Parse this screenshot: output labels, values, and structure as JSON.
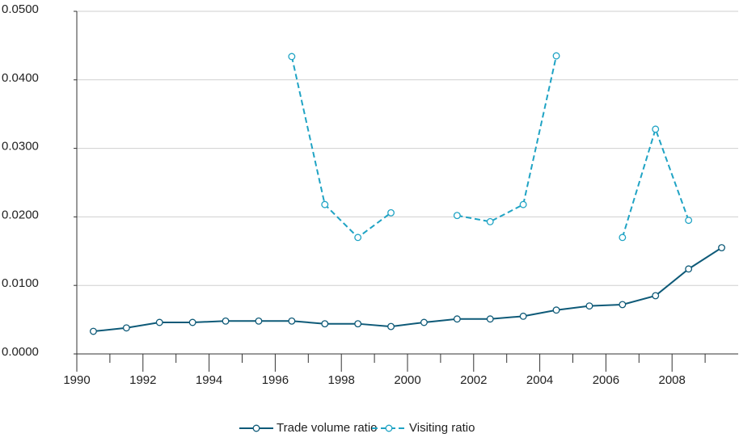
{
  "chart_data": {
    "type": "line",
    "x": [
      1990.5,
      1991.5,
      1992.5,
      1993.5,
      1994.5,
      1995.5,
      1996.5,
      1997.5,
      1998.5,
      1999.5,
      2000.5,
      2001.5,
      2002.5,
      2003.5,
      2004.5,
      2005.5,
      2006.5,
      2007.5,
      2008.5,
      2009.5
    ],
    "series": [
      {
        "name": "Trade volume ratio",
        "color": "#0e5a78",
        "dashed": false,
        "values": [
          0.0033,
          0.0038,
          0.0046,
          0.0046,
          0.0048,
          0.0048,
          0.0048,
          0.0044,
          0.0044,
          0.004,
          0.0046,
          0.0051,
          0.0051,
          0.0055,
          0.0064,
          0.007,
          0.0072,
          0.0085,
          0.0124,
          0.0155
        ]
      },
      {
        "name": "Visiting ratio",
        "color": "#1fa3c4",
        "dashed": true,
        "values": [
          null,
          null,
          null,
          null,
          null,
          null,
          0.0434,
          0.0218,
          0.017,
          0.0206,
          null,
          0.0202,
          0.0193,
          0.0218,
          0.0435,
          null,
          0.017,
          0.0328,
          0.0195,
          null
        ]
      }
    ],
    "xlim": [
      1990,
      2010
    ],
    "xticks": [
      1990,
      1992,
      1994,
      1996,
      1998,
      2000,
      2002,
      2004,
      2006,
      2008
    ],
    "xminorticks": [
      1991,
      1993,
      1995,
      1997,
      1999,
      2001,
      2003,
      2005,
      2007,
      2009
    ],
    "ylim": [
      0,
      0.05
    ],
    "yticks": [
      {
        "value": 0,
        "label": "0.0000"
      },
      {
        "value": 0.01,
        "label": "0.0100"
      },
      {
        "value": 0.02,
        "label": "0.0200"
      },
      {
        "value": 0.03,
        "label": "0.0300"
      },
      {
        "value": 0.04,
        "label": "0.0400"
      },
      {
        "value": 0.05,
        "label": "0.0500"
      }
    ],
    "grid": true,
    "legend": "bottom"
  }
}
